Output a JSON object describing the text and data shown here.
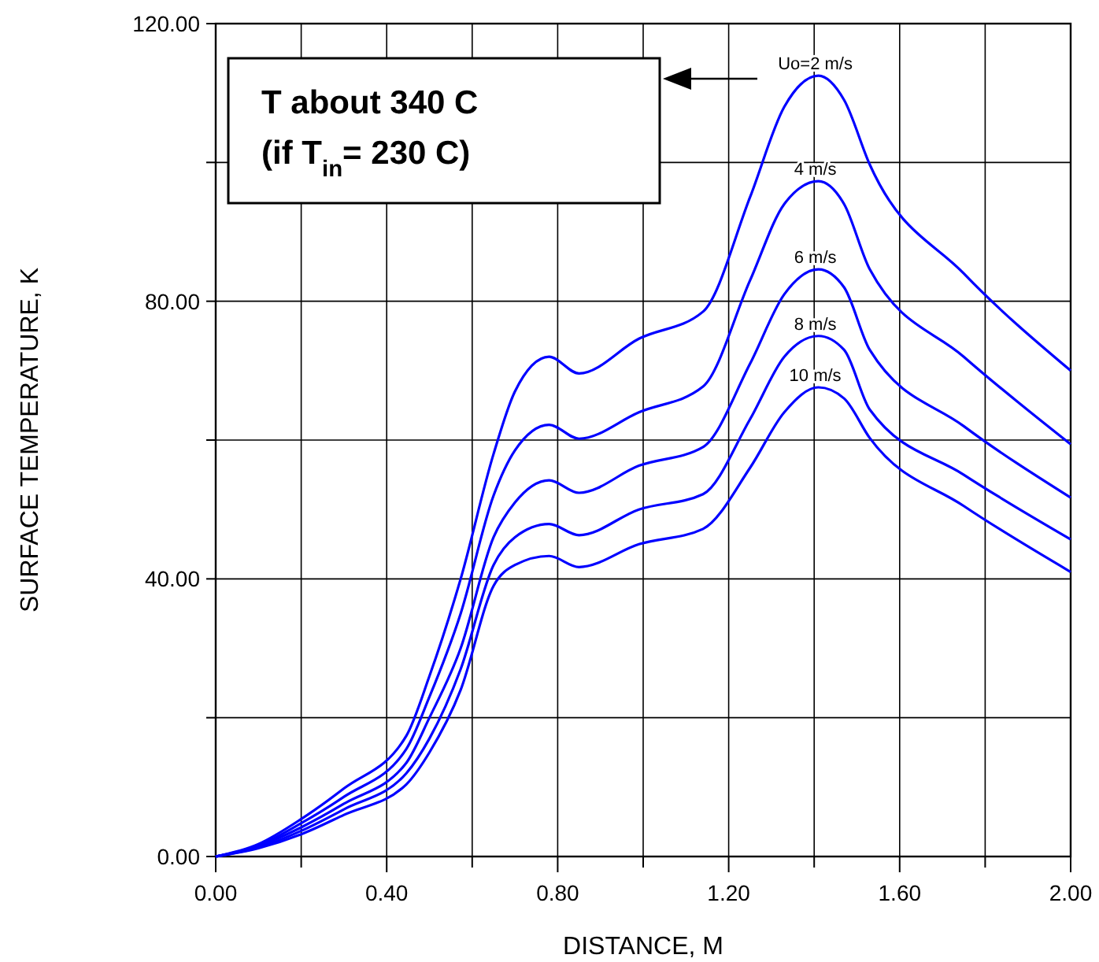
{
  "chart_data": {
    "type": "line",
    "xlabel": "DISTANCE, M",
    "ylabel": "SURFACE TEMPERATURE, K",
    "x": [
      0,
      0.1,
      0.2,
      0.3,
      0.446,
      0.5,
      0.573,
      0.65,
      0.7,
      0.78,
      0.85,
      0.99,
      1.14,
      1.25,
      1.33,
      1.41,
      1.47,
      1.53,
      1.75,
      2.0
    ],
    "series": [
      {
        "name": "Uo=2 m/s",
        "color": "#0000ff",
        "values": [
          0,
          1.8,
          5.4,
          9.8,
          17.4,
          26,
          40,
          58,
          67,
          72,
          69.6,
          74.6,
          78.5,
          95,
          108,
          112.5,
          109,
          99.7,
          84,
          70
        ]
      },
      {
        "name": "4 m/s",
        "color": "#0000ff",
        "values": [
          0,
          1.6,
          4.8,
          8.6,
          15.5,
          23,
          35,
          52,
          58.5,
          62.2,
          60.2,
          64,
          67.7,
          83,
          94,
          97.3,
          94,
          84.6,
          72,
          59.4
        ]
      },
      {
        "name": "6 m/s",
        "color": "#0000ff",
        "values": [
          0,
          1.5,
          4.2,
          7.6,
          13.5,
          20,
          30,
          46,
          51,
          54.2,
          52.4,
          56.3,
          59,
          71,
          81,
          84.6,
          82,
          73,
          62,
          51.7
        ]
      },
      {
        "name": "8 m/s",
        "color": "#0000ff",
        "values": [
          0,
          1.3,
          3.7,
          6.8,
          12,
          17,
          27,
          42,
          46,
          47.9,
          46.3,
          50,
          52.2,
          63,
          72,
          75,
          73,
          64.4,
          55,
          45.7
        ]
      },
      {
        "name": "10 m/s",
        "color": "#0000ff",
        "values": [
          0,
          1.2,
          3.2,
          6,
          10.4,
          15,
          24,
          39,
          42,
          43.3,
          41.7,
          45,
          47.2,
          56,
          64,
          67.6,
          66,
          60.3,
          50.5,
          41
        ]
      }
    ],
    "xlim": [
      0,
      2
    ],
    "ylim": [
      0,
      120
    ],
    "xticks": [
      {
        "value": 0,
        "label": "0.00"
      },
      {
        "value": 0.2,
        "label": null
      },
      {
        "value": 0.4,
        "label": "0.40"
      },
      {
        "value": 0.6,
        "label": null
      },
      {
        "value": 0.8,
        "label": "0.80"
      },
      {
        "value": 1.0,
        "label": null
      },
      {
        "value": 1.2,
        "label": "1.20"
      },
      {
        "value": 1.4,
        "label": null
      },
      {
        "value": 1.6,
        "label": "1.60"
      },
      {
        "value": 1.8,
        "label": null
      },
      {
        "value": 2.0,
        "label": "2.00"
      }
    ],
    "yticks": [
      {
        "value": 0,
        "label": "0.00"
      },
      {
        "value": 20,
        "label": null
      },
      {
        "value": 40,
        "label": "40.00"
      },
      {
        "value": 60,
        "label": null
      },
      {
        "value": 80,
        "label": "80.00"
      },
      {
        "value": 100,
        "label": null
      },
      {
        "value": 120,
        "label": "120.00"
      }
    ],
    "grid": true,
    "marker": "none",
    "line_style": "solid",
    "annotations": [
      "T about 340 C",
      "(if T$_{in}$= 230 C)"
    ]
  }
}
